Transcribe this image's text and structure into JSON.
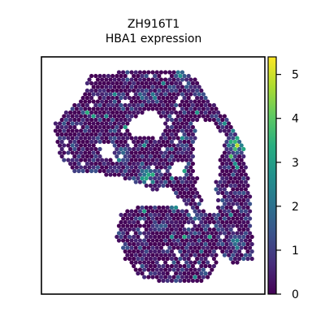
{
  "chart_data": {
    "type": "scatter",
    "subtype": "spatial-hexbin",
    "title": "ZH916T1",
    "subtitle": "HBA1 expression",
    "xlabel": "",
    "ylabel": "",
    "axis_ticks_visible": false,
    "grid": false,
    "colormap": "viridis",
    "colorbar": {
      "position": "right",
      "vmin": 0,
      "vmax": 5.4,
      "ticks": [
        0,
        1,
        2,
        3,
        4,
        5
      ],
      "tick_labels": [
        "0",
        "1",
        "2",
        "3",
        "4",
        "5"
      ]
    },
    "value_summary": {
      "min": 0,
      "max": 5.4,
      "dominant_range": [
        0,
        1
      ],
      "hotspots": [
        {
          "region": "upper-right lobe",
          "value": 4.5
        },
        {
          "region": "central-left band",
          "value": 3.5
        },
        {
          "region": "right lower strip",
          "value": 2.5
        }
      ]
    }
  }
}
